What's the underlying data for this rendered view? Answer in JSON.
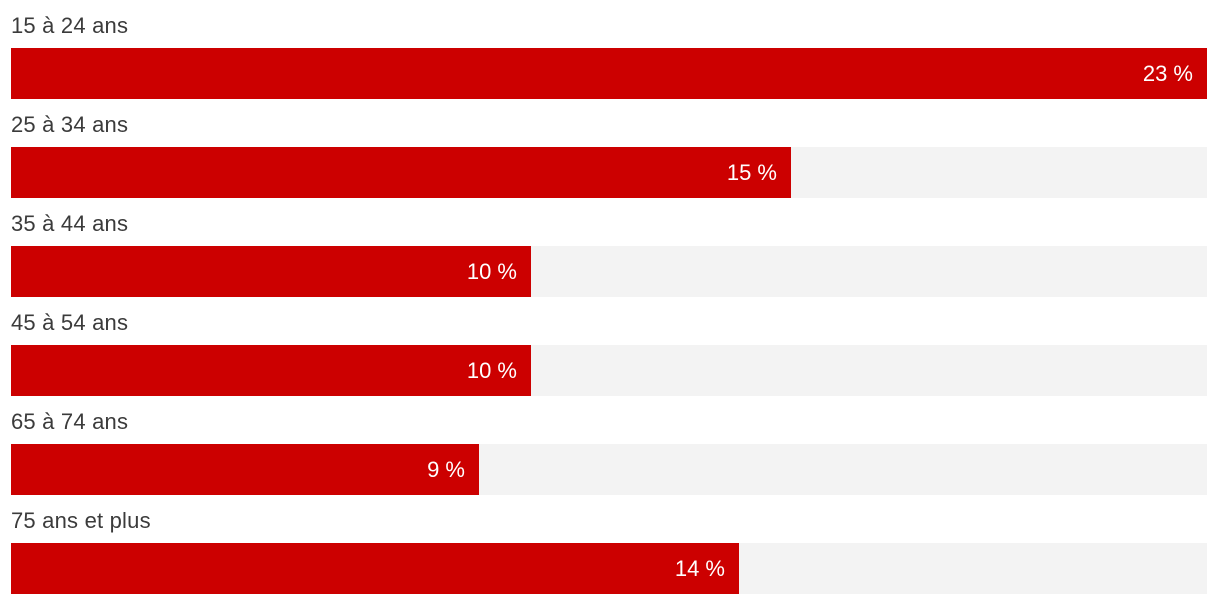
{
  "chart_data": {
    "type": "bar",
    "orientation": "horizontal",
    "title": "",
    "xlabel": "",
    "ylabel": "",
    "unit": "%",
    "xlim": [
      0,
      23
    ],
    "grid": false,
    "legend": false,
    "categories": [
      "15 à 24 ans",
      "25 à 34 ans",
      "35 à 44 ans",
      "45 à 54 ans",
      "65 à 74 ans",
      "75 ans et plus"
    ],
    "values": [
      23,
      15,
      10,
      10,
      9,
      14
    ],
    "value_labels": [
      "23 %",
      "15 %",
      "10 %",
      "10 %",
      "9 %",
      "14 %"
    ],
    "colors": {
      "bar": "#cc0000",
      "track": "#f3f3f3",
      "label": "#3b3b3b",
      "value_text": "#ffffff"
    }
  }
}
